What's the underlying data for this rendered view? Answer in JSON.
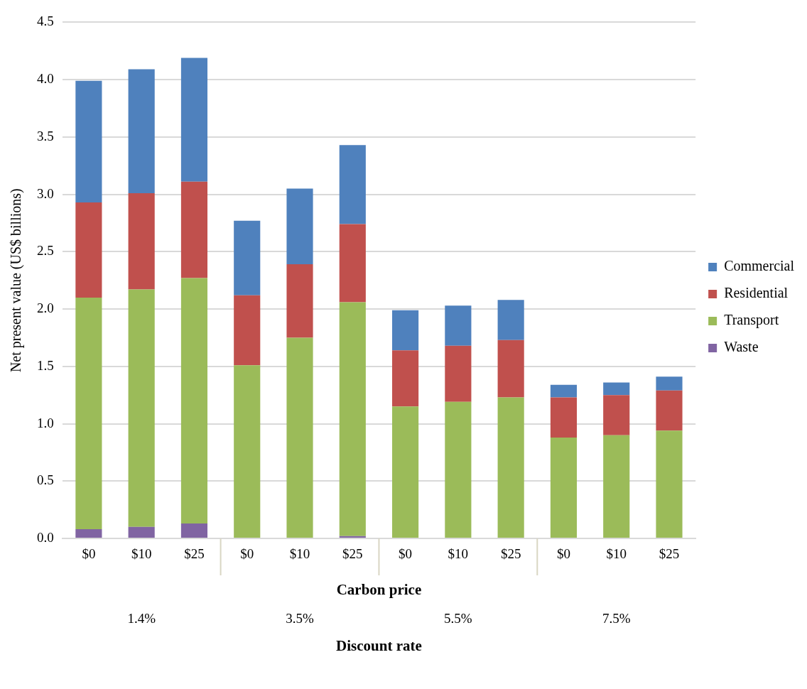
{
  "chart_data": {
    "type": "bar",
    "stacked": true,
    "xlabel": "Carbon price",
    "ylabel": "Net present value (US$ billions)",
    "categories": [
      "$0",
      "$10",
      "$25",
      "$0",
      "$10",
      "$25",
      "$0",
      "$10",
      "$25",
      "$0",
      "$10",
      "$25"
    ],
    "series": [
      {
        "name": "Waste",
        "color": "#8064a2",
        "values": [
          0.08,
          0.1,
          0.13,
          0,
          0,
          0.02,
          0,
          0,
          0,
          0,
          0,
          0
        ]
      },
      {
        "name": "Transport",
        "color": "#9bbb59",
        "values": [
          2.02,
          2.07,
          2.14,
          1.51,
          1.75,
          2.04,
          1.15,
          1.19,
          1.23,
          0.88,
          0.9,
          0.94
        ]
      },
      {
        "name": "Residential",
        "color": "#c0504d",
        "values": [
          0.83,
          0.84,
          0.84,
          0.61,
          0.64,
          0.68,
          0.49,
          0.49,
          0.5,
          0.35,
          0.35,
          0.35
        ]
      },
      {
        "name": "Commercial",
        "color": "#4f81bd",
        "values": [
          1.06,
          1.08,
          1.08,
          0.65,
          0.66,
          0.69,
          0.35,
          0.35,
          0.35,
          0.11,
          0.11,
          0.12
        ]
      }
    ],
    "ylim": [
      0,
      4.5
    ],
    "yticks": [
      {
        "value": 0,
        "label": "0.0"
      },
      {
        "value": 0.5,
        "label": "0.5"
      },
      {
        "value": 1,
        "label": "1.0"
      },
      {
        "value": 1.5,
        "label": "1.5"
      },
      {
        "value": 2,
        "label": "2.0"
      },
      {
        "value": 2.5,
        "label": "2.5"
      },
      {
        "value": 3,
        "label": "3.0"
      },
      {
        "value": 3.5,
        "label": "3.5"
      },
      {
        "value": 4,
        "label": "4.0"
      },
      {
        "value": 4.5,
        "label": "4.5"
      }
    ],
    "grid": "y",
    "legend": "right",
    "annotations": [
      "1.4%",
      "3.5%",
      "5.5%",
      "7.5%",
      "Discount rate"
    ]
  }
}
